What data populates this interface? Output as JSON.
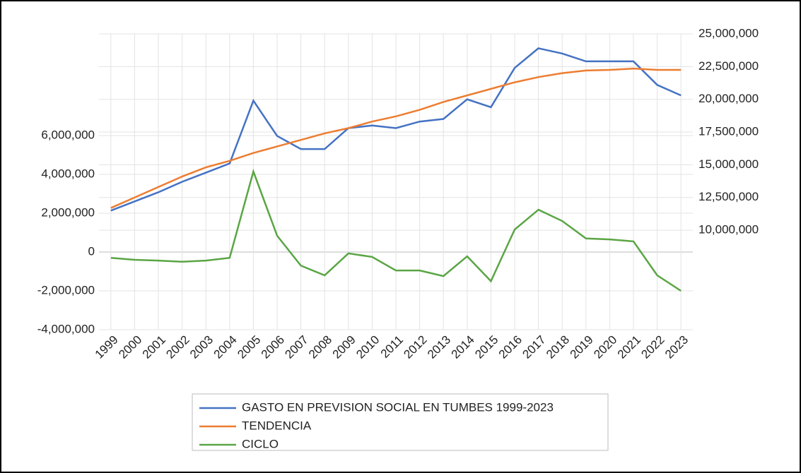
{
  "chart_data": {
    "type": "line",
    "categories": [
      "1999",
      "2000",
      "2001",
      "2002",
      "2003",
      "2004",
      "2005",
      "2006",
      "2007",
      "2008",
      "2009",
      "2010",
      "2011",
      "2012",
      "2013",
      "2014",
      "2015",
      "2016",
      "2017",
      "2018",
      "2019",
      "2020",
      "2021",
      "2022",
      "2023"
    ],
    "series": [
      {
        "name": "GASTO EN PREVISION SOCIAL EN TUMBES 1999-2023",
        "color": "#4472c4",
        "axis": "y2",
        "values": [
          11500000,
          12200000,
          12900000,
          13700000,
          14400000,
          15100000,
          19900000,
          17200000,
          16200000,
          16200000,
          17800000,
          18000000,
          17800000,
          18300000,
          18500000,
          20000000,
          19400000,
          22400000,
          23900000,
          23500000,
          22900000,
          22900000,
          22900000,
          21100000,
          20300000
        ]
      },
      {
        "name": "TENDENCIA",
        "color": "#ed7d31",
        "axis": "y2",
        "values": [
          11700000,
          12500000,
          13300000,
          14100000,
          14800000,
          15300000,
          15900000,
          16400000,
          16900000,
          17400000,
          17800000,
          18300000,
          18700000,
          19200000,
          19800000,
          20300000,
          20800000,
          21300000,
          21700000,
          22000000,
          22200000,
          22250000,
          22350000,
          22250000,
          22250000
        ]
      },
      {
        "name": "CICLO",
        "color": "#5aa544",
        "values": [
          -300000,
          -400000,
          -440000,
          -500000,
          -440000,
          -300000,
          4150000,
          840000,
          -700000,
          -1200000,
          -70000,
          -250000,
          -950000,
          -950000,
          -1240000,
          -220000,
          -1500000,
          1160000,
          2180000,
          1600000,
          700000,
          650000,
          550000,
          -1200000,
          -2000000
        ]
      }
    ],
    "ylim": [
      -4000000,
      11240000
    ],
    "yticks": [
      {
        "value": -4000000,
        "label": "-4,000,000"
      },
      {
        "value": -2000000,
        "label": "-2,000,000"
      },
      0,
      {
        "value": 2000000,
        "label": "2,000,000"
      },
      {
        "value": 4000000,
        "label": "4,000,000"
      },
      {
        "value": 6000000,
        "label": "6,000,000"
      }
    ],
    "y2lim": [
      2400000,
      25000000
    ],
    "y2ticks": [
      {
        "value": 10000000,
        "label": "10,000,000"
      },
      {
        "value": 12500000,
        "label": "12,500,000"
      },
      {
        "value": 15000000,
        "label": "15,000,000"
      },
      {
        "value": 17500000,
        "label": "17,500,000"
      },
      {
        "value": 20000000,
        "label": "20,000,000"
      },
      {
        "value": 22500000,
        "label": "22,500,000"
      },
      {
        "value": 25000000,
        "label": "25,000,000"
      }
    ],
    "grid": true,
    "legend": "bottom"
  }
}
